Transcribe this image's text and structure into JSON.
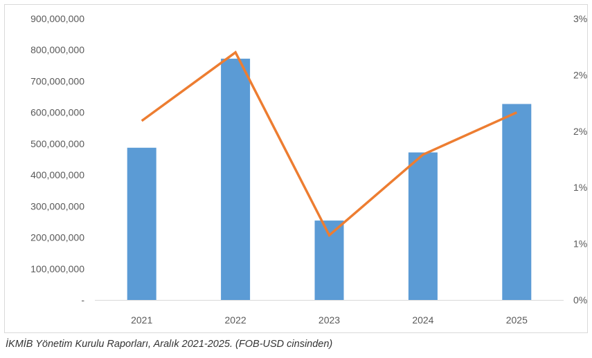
{
  "chart_data": {
    "type": "bar",
    "categories": [
      "2021",
      "2022",
      "2023",
      "2024",
      "2025"
    ],
    "series": [
      {
        "type": "bar",
        "axis": "left",
        "color": "#5b9bd5",
        "values": [
          487000000,
          772000000,
          254000000,
          472000000,
          627000000
        ]
      },
      {
        "type": "line",
        "axis": "right",
        "color": "#ed7d31",
        "values": [
          0.0191,
          0.0264,
          0.0069,
          0.0155,
          0.02
        ]
      }
    ],
    "y_left": {
      "ylim": [
        0,
        900000000
      ],
      "tick_labels": [
        "-",
        "100,000,000",
        "200,000,000",
        "300,000,000",
        "400,000,000",
        "500,000,000",
        "600,000,000",
        "700,000,000",
        "800,000,000",
        "900,000,000"
      ]
    },
    "y_right": {
      "ylim": [
        0,
        0.03
      ],
      "tick_labels": [
        "0%",
        "1%",
        "1%",
        "2%",
        "2%",
        "3%"
      ]
    },
    "grid": false,
    "legend": "none"
  },
  "caption": "İKMİB Yönetim Kurulu Raporları, Aralık 2021-2025. (FOB-USD cinsinden)"
}
